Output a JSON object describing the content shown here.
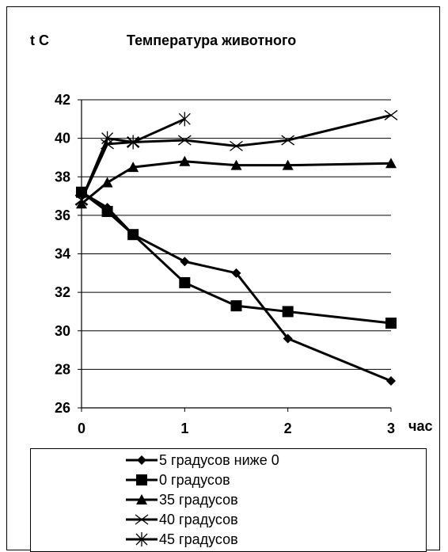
{
  "chart_data": {
    "type": "line",
    "title": "Температура животного",
    "ylabel": "t C",
    "xlabel": "час",
    "ylim": [
      26,
      42
    ],
    "xlim": [
      0,
      3
    ],
    "yticks": [
      "26",
      "28",
      "30",
      "32",
      "34",
      "36",
      "38",
      "40",
      "42"
    ],
    "xticks": [
      "0",
      "1",
      "2",
      "3"
    ],
    "grid": "horizontal",
    "legend_position": "bottom",
    "series": [
      {
        "name": "5 градусов ниже 0",
        "marker": "diamond",
        "x": [
          0,
          0.25,
          0.5,
          1,
          1.5,
          2,
          3
        ],
        "y": [
          37.2,
          36.4,
          35.0,
          33.6,
          33.0,
          29.6,
          27.4
        ]
      },
      {
        "name": "0 градусов",
        "marker": "square",
        "x": [
          0,
          0.25,
          0.5,
          1,
          1.5,
          2,
          3
        ],
        "y": [
          37.2,
          36.2,
          35.0,
          32.5,
          31.3,
          31.0,
          30.4
        ]
      },
      {
        "name": "35 градусов",
        "marker": "triangle",
        "x": [
          0,
          0.25,
          0.5,
          1,
          1.5,
          2,
          3
        ],
        "y": [
          36.6,
          37.7,
          38.5,
          38.8,
          38.6,
          38.6,
          38.7
        ]
      },
      {
        "name": "40 градусов",
        "marker": "x",
        "x": [
          0,
          0.25,
          0.5,
          1,
          1.5,
          2,
          3
        ],
        "y": [
          36.8,
          39.7,
          39.8,
          39.9,
          39.6,
          39.9,
          41.2
        ]
      },
      {
        "name": "45 градусов",
        "marker": "star",
        "x": [
          0,
          0.25,
          0.5,
          1
        ],
        "y": [
          36.8,
          40.0,
          39.8,
          41.0
        ]
      }
    ]
  }
}
